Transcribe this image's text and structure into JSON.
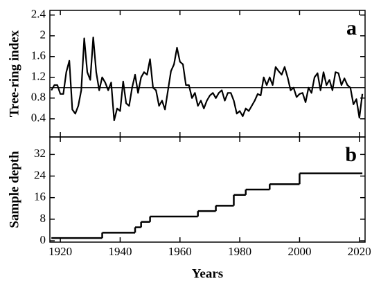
{
  "chart_data": [
    {
      "type": "line",
      "panel": "a",
      "ylabel": "Tree-ring index",
      "color": "#000000",
      "reference": 1,
      "x": [
        1917,
        1918,
        1919,
        1920,
        1921,
        1922,
        1923,
        1924,
        1925,
        1926,
        1927,
        1928,
        1929,
        1930,
        1931,
        1932,
        1933,
        1934,
        1935,
        1936,
        1937,
        1938,
        1939,
        1940,
        1941,
        1942,
        1943,
        1944,
        1945,
        1946,
        1947,
        1948,
        1949,
        1950,
        1951,
        1952,
        1953,
        1954,
        1955,
        1956,
        1957,
        1958,
        1959,
        1960,
        1961,
        1962,
        1963,
        1964,
        1965,
        1966,
        1967,
        1968,
        1969,
        1970,
        1971,
        1972,
        1973,
        1974,
        1975,
        1976,
        1977,
        1978,
        1979,
        1980,
        1981,
        1982,
        1983,
        1984,
        1985,
        1986,
        1987,
        1988,
        1989,
        1990,
        1991,
        1992,
        1993,
        1994,
        1995,
        1996,
        1997,
        1998,
        1999,
        2000,
        2001,
        2002,
        2003,
        2004,
        2005,
        2006,
        2007,
        2008,
        2009,
        2010,
        2011,
        2012,
        2013,
        2014,
        2015,
        2016,
        2017,
        2018,
        2019,
        2020,
        2021
      ],
      "values": [
        0.95,
        1.05,
        1.05,
        0.88,
        0.88,
        1.3,
        1.52,
        0.58,
        0.5,
        0.65,
        0.95,
        1.95,
        1.3,
        1.15,
        1.97,
        1.3,
        0.95,
        1.2,
        1.1,
        0.95,
        1.1,
        0.37,
        0.6,
        0.55,
        1.12,
        0.7,
        0.65,
        1.0,
        1.25,
        0.9,
        1.2,
        1.3,
        1.25,
        1.55,
        1.0,
        0.95,
        0.65,
        0.75,
        0.58,
        0.95,
        1.32,
        1.45,
        1.77,
        1.5,
        1.45,
        1.05,
        1.05,
        0.8,
        0.9,
        0.65,
        0.75,
        0.6,
        0.75,
        0.85,
        0.9,
        0.8,
        0.9,
        0.95,
        0.75,
        0.9,
        0.9,
        0.75,
        0.5,
        0.55,
        0.45,
        0.6,
        0.55,
        0.65,
        0.75,
        0.88,
        0.85,
        1.2,
        1.05,
        1.2,
        1.05,
        1.4,
        1.32,
        1.25,
        1.4,
        1.2,
        0.95,
        1.0,
        0.82,
        0.88,
        0.9,
        0.72,
        1.0,
        0.9,
        1.2,
        1.28,
        0.95,
        1.3,
        1.05,
        1.15,
        0.95,
        1.3,
        1.28,
        1.05,
        1.18,
        1.05,
        1.0,
        0.68,
        0.78,
        0.42,
        0.88
      ],
      "xlim": [
        1916.5,
        2021.9
      ],
      "xticks": [
        1920,
        1940,
        1960,
        1980,
        2000,
        2020
      ],
      "ylim": [
        0.05,
        2.49
      ],
      "yticks": [
        0.4,
        0.8,
        1.2,
        1.6,
        2,
        2.4
      ]
    },
    {
      "type": "step",
      "panel": "b",
      "ylabel": "Sample depth",
      "xlabel": "Years",
      "color": "#000000",
      "x": [
        1917,
        1934,
        1945,
        1947,
        1950,
        1966,
        1972,
        1978,
        1982,
        1990,
        2000,
        2021
      ],
      "values": [
        1,
        3,
        5,
        7,
        9,
        11,
        13,
        17,
        19,
        21,
        25,
        25
      ],
      "xlim": [
        1916.5,
        2021.9
      ],
      "xticks": [
        1920,
        1940,
        1960,
        1980,
        2000,
        2020
      ],
      "ylim": [
        -0.5,
        38.5
      ],
      "yticks": [
        0,
        8,
        16,
        24,
        32
      ]
    }
  ]
}
